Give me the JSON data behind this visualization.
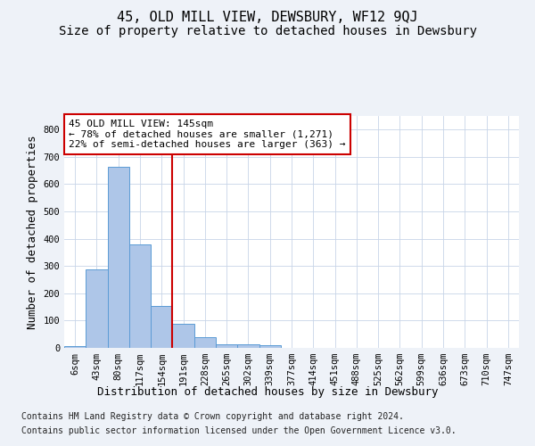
{
  "title": "45, OLD MILL VIEW, DEWSBURY, WF12 9QJ",
  "subtitle": "Size of property relative to detached houses in Dewsbury",
  "xlabel": "Distribution of detached houses by size in Dewsbury",
  "ylabel": "Number of detached properties",
  "footnote1": "Contains HM Land Registry data © Crown copyright and database right 2024.",
  "footnote2": "Contains public sector information licensed under the Open Government Licence v3.0.",
  "bar_labels": [
    "6sqm",
    "43sqm",
    "80sqm",
    "117sqm",
    "154sqm",
    "191sqm",
    "228sqm",
    "265sqm",
    "302sqm",
    "339sqm",
    "377sqm",
    "414sqm",
    "451sqm",
    "488sqm",
    "525sqm",
    "562sqm",
    "599sqm",
    "636sqm",
    "673sqm",
    "710sqm",
    "747sqm"
  ],
  "bar_values": [
    8,
    289,
    663,
    378,
    153,
    88,
    40,
    14,
    14,
    11,
    0,
    0,
    0,
    0,
    0,
    0,
    0,
    0,
    0,
    0,
    0
  ],
  "bar_color": "#aec6e8",
  "bar_edgecolor": "#5b9bd5",
  "vline_x": 4.5,
  "vline_color": "#cc0000",
  "annotation_line1": "45 OLD MILL VIEW: 145sqm",
  "annotation_line2": "← 78% of detached houses are smaller (1,271)",
  "annotation_line3": "22% of semi-detached houses are larger (363) →",
  "annotation_box_color": "#ffffff",
  "annotation_box_edgecolor": "#cc0000",
  "ylim": [
    0,
    850
  ],
  "yticks": [
    0,
    100,
    200,
    300,
    400,
    500,
    600,
    700,
    800
  ],
  "background_color": "#eef2f8",
  "plot_background": "#ffffff",
  "grid_color": "#c8d4e8",
  "title_fontsize": 11,
  "subtitle_fontsize": 10,
  "axis_label_fontsize": 9,
  "tick_fontsize": 7.5,
  "annotation_fontsize": 8,
  "footnote_fontsize": 7
}
